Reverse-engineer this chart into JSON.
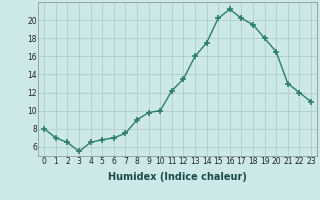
{
  "x": [
    0,
    1,
    2,
    3,
    4,
    5,
    6,
    7,
    8,
    9,
    10,
    11,
    12,
    13,
    14,
    15,
    16,
    17,
    18,
    19,
    20,
    21,
    22,
    23
  ],
  "y": [
    8.0,
    7.0,
    6.5,
    5.5,
    6.5,
    6.8,
    7.0,
    7.5,
    9.0,
    9.8,
    10.0,
    12.2,
    13.5,
    16.0,
    17.5,
    20.2,
    21.2,
    20.2,
    19.5,
    18.0,
    16.5,
    13.0,
    12.0,
    11.0
  ],
  "line_color": "#2d7d6e",
  "marker": "+",
  "marker_size": 4,
  "marker_lw": 1.2,
  "line_width": 1.0,
  "bg_color": "#cce8e8",
  "grid_color": "#b0cccc",
  "xlabel": "Humidex (Indice chaleur)",
  "xlabel_fontsize": 7,
  "ylim": [
    5,
    22
  ],
  "ytick_vals": [
    6,
    8,
    10,
    12,
    14,
    16,
    18,
    20
  ],
  "xtick_vals": [
    0,
    1,
    2,
    3,
    4,
    5,
    6,
    7,
    8,
    9,
    10,
    11,
    12,
    13,
    14,
    15,
    16,
    17,
    18,
    19,
    20,
    21,
    22,
    23
  ],
  "tick_fontsize": 5.5
}
